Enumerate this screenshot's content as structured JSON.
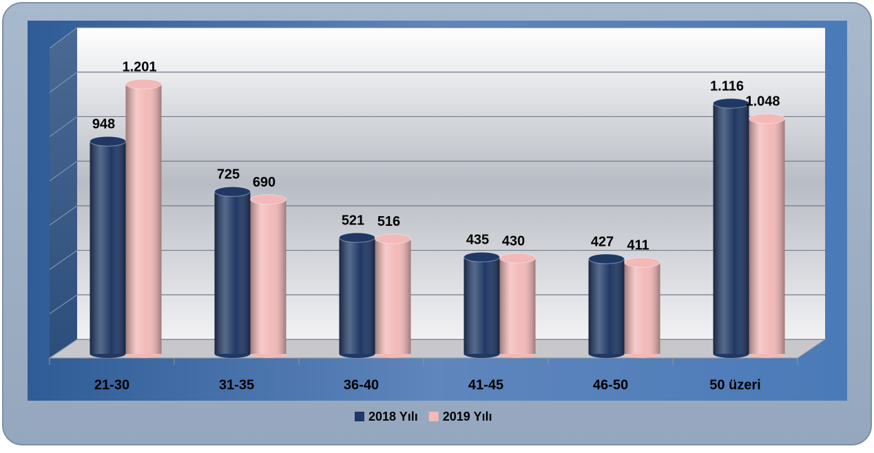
{
  "chart_data": {
    "type": "bar3d",
    "categories": [
      "21-30",
      "31-35",
      "36-40",
      "41-45",
      "46-50",
      "50 üzeri"
    ],
    "series": [
      {
        "name": "2018 Yılı",
        "color": "#1f3864",
        "values": [
          948,
          725,
          521,
          435,
          427,
          1116
        ],
        "value_labels": [
          "948",
          "725",
          "521",
          "435",
          "427",
          "1.116"
        ]
      },
      {
        "name": "2019 Yılı",
        "color": "#f2b9b8",
        "values": [
          1201,
          690,
          516,
          430,
          411,
          1048
        ],
        "value_labels": [
          "1.201",
          "690",
          "516",
          "430",
          "411",
          "1.048"
        ]
      }
    ],
    "ylim": [
      0,
      1400
    ],
    "yticks": [
      0,
      200,
      400,
      600,
      800,
      1000,
      1200,
      1400
    ],
    "grid": true,
    "legend": "bottom"
  }
}
